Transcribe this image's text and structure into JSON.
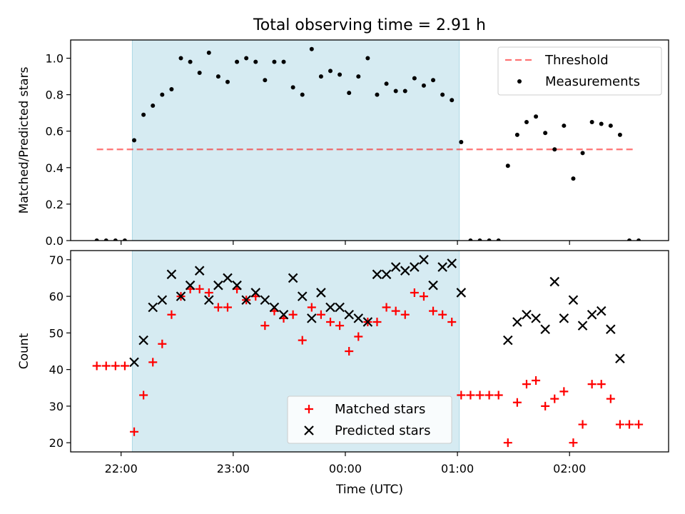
{
  "figure": {
    "title": "Total observing time = 2.91 h"
  },
  "colors": {
    "shade": "#add8e6",
    "threshold": "#ff0000",
    "measurement": "#000000",
    "matched": "#ff0000",
    "predicted": "#000000"
  },
  "chart_data": [
    {
      "type": "scatter",
      "ylabel": "Matched/Predicted stars",
      "xlabel": "",
      "xlim": [
        "21:33",
        "02:53"
      ],
      "ylim": [
        0,
        1.1
      ],
      "yticks": [
        "0.0",
        "0.2",
        "0.4",
        "0.6",
        "0.8",
        "1.0"
      ],
      "shaded_interval": [
        "22:06",
        "01:01"
      ],
      "threshold": {
        "name": "Threshold",
        "value": 0.5,
        "x": [
          "21:47",
          "02:35"
        ]
      },
      "legend": {
        "position": "upper right",
        "entries": [
          "Threshold",
          "Measurements"
        ]
      },
      "series": [
        {
          "name": "Measurements",
          "x": [
            "21:47",
            "21:52",
            "21:57",
            "22:02",
            "22:07",
            "22:12",
            "22:17",
            "22:22",
            "22:27",
            "22:32",
            "22:37",
            "22:42",
            "22:47",
            "22:52",
            "22:57",
            "23:02",
            "23:07",
            "23:12",
            "23:17",
            "23:22",
            "23:27",
            "23:32",
            "23:37",
            "23:42",
            "23:47",
            "23:52",
            "23:57",
            "00:02",
            "00:07",
            "00:12",
            "00:17",
            "00:22",
            "00:27",
            "00:32",
            "00:37",
            "00:42",
            "00:47",
            "00:52",
            "00:57",
            "01:02",
            "01:07",
            "01:12",
            "01:17",
            "01:22",
            "01:27",
            "01:32",
            "01:37",
            "01:42",
            "01:47",
            "01:52",
            "01:57",
            "02:02",
            "02:07",
            "02:12",
            "02:17",
            "02:22",
            "02:27",
            "02:32",
            "02:37"
          ],
          "y": [
            0,
            0,
            0,
            0,
            0.55,
            0.69,
            0.74,
            0.8,
            0.83,
            1.0,
            0.98,
            0.92,
            1.03,
            0.9,
            0.87,
            0.98,
            1.0,
            0.98,
            0.88,
            0.98,
            0.98,
            0.84,
            0.8,
            1.05,
            0.9,
            0.93,
            0.91,
            0.81,
            0.9,
            1.0,
            0.8,
            0.86,
            0.82,
            0.82,
            0.89,
            0.85,
            0.88,
            0.8,
            0.77,
            0.54,
            0,
            0,
            0,
            0,
            0.41,
            0.58,
            0.65,
            0.68,
            0.59,
            0.5,
            0.63,
            0.34,
            0.48,
            0.65,
            0.64,
            0.63,
            0.58,
            0,
            0
          ]
        }
      ]
    },
    {
      "type": "scatter",
      "ylabel": "Count",
      "xlabel": "Time (UTC)",
      "xlim": [
        "21:33",
        "02:53"
      ],
      "ylim": [
        17.5,
        72.5
      ],
      "yticks": [
        "20",
        "30",
        "40",
        "50",
        "60",
        "70"
      ],
      "xticks": [
        "22:00",
        "23:00",
        "00:00",
        "01:00",
        "02:00"
      ],
      "shaded_interval": [
        "22:06",
        "01:01"
      ],
      "legend": {
        "position": "lower center",
        "entries": [
          "Matched stars",
          "Predicted stars"
        ]
      },
      "series": [
        {
          "name": "Matched stars",
          "marker": "+",
          "x": [
            "21:47",
            "21:52",
            "21:57",
            "22:02",
            "22:07",
            "22:12",
            "22:17",
            "22:22",
            "22:27",
            "22:32",
            "22:37",
            "22:42",
            "22:47",
            "22:52",
            "22:57",
            "23:02",
            "23:07",
            "23:12",
            "23:17",
            "23:22",
            "23:27",
            "23:32",
            "23:37",
            "23:42",
            "23:47",
            "23:52",
            "23:57",
            "00:02",
            "00:07",
            "00:12",
            "00:17",
            "00:22",
            "00:27",
            "00:32",
            "00:37",
            "00:42",
            "00:47",
            "00:52",
            "00:57",
            "01:02",
            "01:07",
            "01:12",
            "01:17",
            "01:22",
            "01:27",
            "01:32",
            "01:37",
            "01:42",
            "01:47",
            "01:52",
            "01:57",
            "02:02",
            "02:07",
            "02:12",
            "02:17",
            "02:22",
            "02:27",
            "02:32",
            "02:37"
          ],
          "y": [
            41,
            41,
            41,
            41,
            23,
            33,
            42,
            47,
            55,
            60,
            62,
            62,
            61,
            57,
            57,
            62,
            59,
            60,
            52,
            56,
            54,
            55,
            48,
            57,
            55,
            53,
            52,
            45,
            49,
            53,
            53,
            57,
            56,
            55,
            61,
            60,
            56,
            55,
            53,
            33,
            33,
            33,
            33,
            33,
            20,
            31,
            36,
            37,
            30,
            32,
            34,
            20,
            25,
            36,
            36,
            32,
            25,
            25,
            25
          ]
        },
        {
          "name": "Predicted stars",
          "marker": "x",
          "x": [
            "22:07",
            "22:12",
            "22:17",
            "22:22",
            "22:27",
            "22:32",
            "22:37",
            "22:42",
            "22:47",
            "22:52",
            "22:57",
            "23:02",
            "23:07",
            "23:12",
            "23:17",
            "23:22",
            "23:27",
            "23:32",
            "23:37",
            "23:42",
            "23:47",
            "23:52",
            "23:57",
            "00:02",
            "00:07",
            "00:12",
            "00:17",
            "00:22",
            "00:27",
            "00:32",
            "00:37",
            "00:42",
            "00:47",
            "00:52",
            "00:57",
            "01:02",
            "01:27",
            "01:32",
            "01:37",
            "01:42",
            "01:47",
            "01:52",
            "01:57",
            "02:02",
            "02:07",
            "02:12",
            "02:17",
            "02:22",
            "02:27"
          ],
          "y": [
            42,
            48,
            57,
            59,
            66,
            60,
            63,
            67,
            59,
            63,
            65,
            63,
            59,
            61,
            59,
            57,
            55,
            65,
            60,
            54,
            61,
            57,
            57,
            55,
            54,
            53,
            66,
            66,
            68,
            67,
            68,
            70,
            63,
            68,
            69,
            61,
            48,
            53,
            55,
            54,
            51,
            64,
            54,
            59,
            52,
            55,
            56,
            51,
            43
          ]
        }
      ]
    }
  ]
}
